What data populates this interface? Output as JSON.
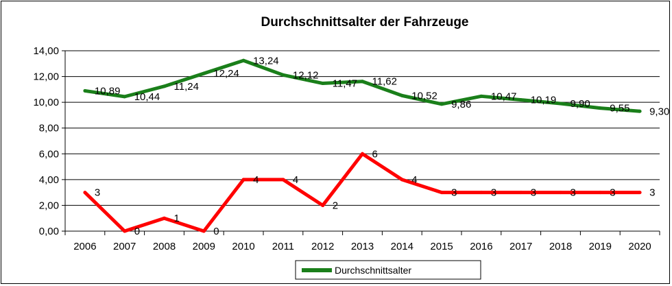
{
  "chart_data": {
    "type": "line",
    "title": "Durchschnittsalter der Fahrzeuge",
    "categories": [
      "2006",
      "2007",
      "2008",
      "2009",
      "2010",
      "2011",
      "2012",
      "2013",
      "2014",
      "2015",
      "2016",
      "2017",
      "2018",
      "2019",
      "2020"
    ],
    "ylim": [
      0,
      14
    ],
    "yticks": [
      "0,00",
      "2,00",
      "4,00",
      "6,00",
      "8,00",
      "10,00",
      "12,00",
      "14,00"
    ],
    "grid": true,
    "legend_position": "bottom",
    "series": [
      {
        "name": "Durchschnittsalter",
        "color": "#1a7f1a",
        "values": [
          10.89,
          10.44,
          11.24,
          12.24,
          13.24,
          12.12,
          11.47,
          11.62,
          10.52,
          9.86,
          10.47,
          10.19,
          9.9,
          9.55,
          9.3
        ],
        "labels": [
          "10,89",
          "10,44",
          "11,24",
          "12,24",
          "13,24",
          "12,12",
          "11,47",
          "11,62",
          "10,52",
          "9,86",
          "10,47",
          "10,19",
          "9,90",
          "9,55",
          "9,30"
        ]
      },
      {
        "color": "#ff0000",
        "values": [
          3,
          0,
          1,
          0,
          4,
          4,
          2,
          6,
          4,
          3,
          3,
          3,
          3,
          3,
          3
        ],
        "labels": [
          "3",
          "0",
          "1",
          "0",
          "4",
          "4",
          "2",
          "6",
          "4",
          "3",
          "3",
          "3",
          "3",
          "3",
          "3"
        ]
      }
    ]
  }
}
